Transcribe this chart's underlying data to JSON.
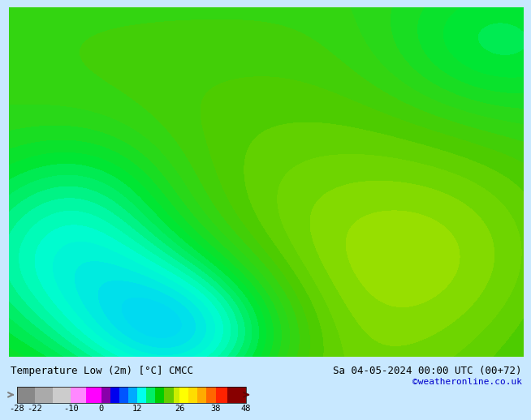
{
  "title_left": "Temperature Low (2m) [°C] CMCC",
  "title_right": "Sa 04-05-2024 00:00 UTC (00+72)",
  "credit": "©weatheronline.co.uk",
  "colorbar_ticks": [
    -28,
    -22,
    -10,
    0,
    12,
    26,
    38,
    48
  ],
  "colorbar_colors": [
    "#a0a0a0",
    "#c8c8c8",
    "#e8e8e8",
    "#ff00ff",
    "#cc00cc",
    "#9900aa",
    "#0000ff",
    "#0055ff",
    "#00aaff",
    "#00ffff",
    "#00ee88",
    "#00cc00",
    "#66cc00",
    "#aadd00",
    "#ffff00",
    "#ffdd00",
    "#ffaa00",
    "#ff7700",
    "#ff4400",
    "#dd0000",
    "#aa0000",
    "#660000"
  ],
  "bg_color": "#c8e8ff",
  "map_bg": "#c8e8ff",
  "colorbar_bounds": [
    -28,
    -22,
    -10,
    0,
    12,
    26,
    38,
    48
  ],
  "fig_width": 6.34,
  "fig_height": 4.9
}
